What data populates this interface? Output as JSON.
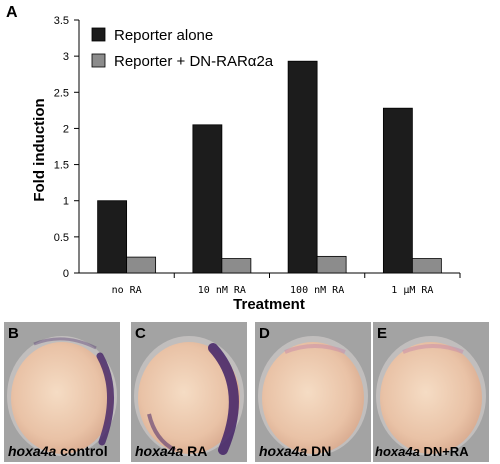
{
  "panel_a": {
    "letter": "A",
    "chart_data": {
      "type": "bar",
      "categories": [
        "no RA",
        "10 nM RA",
        "100 nM RA",
        "1 μM RA"
      ],
      "series": [
        {
          "name": "Reporter alone",
          "values": [
            1.0,
            2.05,
            2.93,
            2.28
          ],
          "color": "#1c1c1c"
        },
        {
          "name": "Reporter + DN-RARα2a",
          "values": [
            0.22,
            0.2,
            0.23,
            0.2
          ],
          "color": "#8c8c8c"
        }
      ],
      "xlabel": "Treatment",
      "ylabel": "Fold induction",
      "ylim": [
        0,
        3.5
      ],
      "yticks": [
        "0",
        "0.5",
        "1",
        "1.5",
        "2",
        "2.5",
        "3",
        "3.5"
      ],
      "ytick_values": [
        0,
        0.5,
        1,
        1.5,
        2,
        2.5,
        3,
        3.5
      ],
      "grid": false,
      "legend_position": "top-left"
    }
  },
  "embryos": [
    {
      "letter": "B",
      "gene": "hoxa4a",
      "label": "control",
      "stain": "right-edge"
    },
    {
      "letter": "C",
      "gene": "hoxa4a",
      "label": "RA",
      "stain": "right-strong"
    },
    {
      "letter": "D",
      "gene": "hoxa4a",
      "label": "DN",
      "stain": "faint"
    },
    {
      "letter": "E",
      "gene": "hoxa4a",
      "label": "DN+RA",
      "stain": "faint"
    }
  ],
  "colors": {
    "embryo_background": "#a3a3a3",
    "yolk": "#e9c2a6",
    "stain": "#4a2a6a"
  }
}
